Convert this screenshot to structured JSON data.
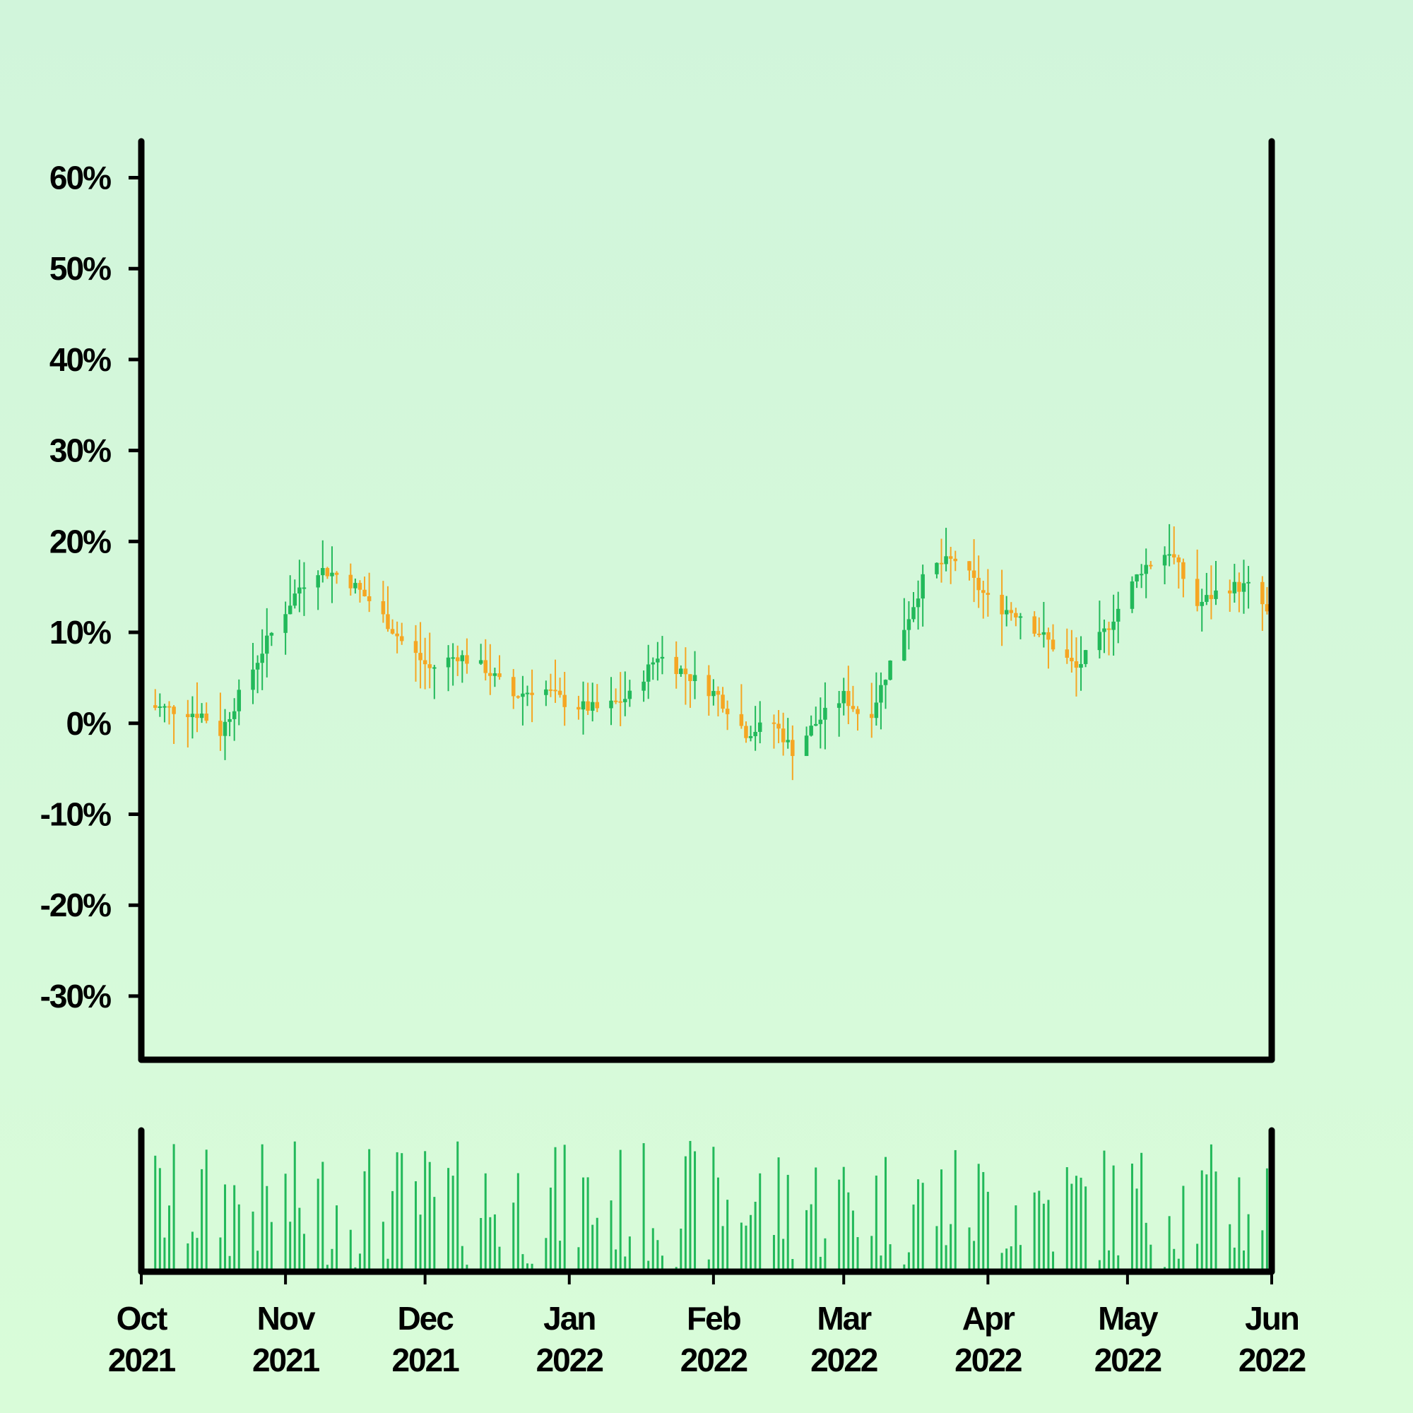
{
  "chart_data": {
    "type": "candlestick",
    "title": "",
    "xlabel": "",
    "ylabel": "",
    "x_range": [
      "2021-10-01",
      "2022-06-01"
    ],
    "ylim": [
      -37,
      64
    ],
    "y_unit": "%",
    "y_ticks": [
      "-30%",
      "-20%",
      "-10%",
      "0%",
      "10%",
      "20%",
      "30%",
      "40%",
      "50%",
      "60%"
    ],
    "y_tick_values": [
      -30,
      -20,
      -10,
      0,
      10,
      20,
      30,
      40,
      50,
      60
    ],
    "x_ticks": [
      {
        "date": "2021-10-01",
        "month": "Oct",
        "year": "2021"
      },
      {
        "date": "2021-11-01",
        "month": "Nov",
        "year": "2021"
      },
      {
        "date": "2021-12-01",
        "month": "Dec",
        "year": "2021"
      },
      {
        "date": "2022-01-01",
        "month": "Jan",
        "year": "2022"
      },
      {
        "date": "2022-02-01",
        "month": "Feb",
        "year": "2022"
      },
      {
        "date": "2022-03-01",
        "month": "Mar",
        "year": "2022"
      },
      {
        "date": "2022-04-01",
        "month": "Apr",
        "year": "2022"
      },
      {
        "date": "2022-05-01",
        "month": "May",
        "year": "2022"
      },
      {
        "date": "2022-06-01",
        "month": "Jun",
        "year": "2022"
      }
    ],
    "colors": {
      "up": "#22b95a",
      "down": "#f5a623",
      "volume": "#22b95a",
      "axis": "#000000"
    },
    "close_path": [
      [
        "2021-10-01",
        2
      ],
      [
        "2021-10-08",
        1.5
      ],
      [
        "2021-10-14",
        1
      ],
      [
        "2021-10-18",
        -1
      ],
      [
        "2021-10-22",
        3
      ],
      [
        "2021-10-28",
        9
      ],
      [
        "2021-11-04",
        15
      ],
      [
        "2021-11-08",
        17
      ],
      [
        "2021-11-14",
        16
      ],
      [
        "2021-11-20",
        13
      ],
      [
        "2021-11-26",
        9
      ],
      [
        "2021-12-02",
        6
      ],
      [
        "2021-12-08",
        7.5
      ],
      [
        "2021-12-14",
        6
      ],
      [
        "2021-12-20",
        3
      ],
      [
        "2021-12-26",
        4
      ],
      [
        "2022-01-01",
        2
      ],
      [
        "2022-01-08",
        1.5
      ],
      [
        "2022-01-14",
        3
      ],
      [
        "2022-01-20",
        7.5
      ],
      [
        "2022-01-26",
        5.5
      ],
      [
        "2022-02-02",
        3
      ],
      [
        "2022-02-08",
        -1
      ],
      [
        "2022-02-14",
        0
      ],
      [
        "2022-02-18",
        -3
      ],
      [
        "2022-02-23",
        0
      ],
      [
        "2022-03-01",
        3
      ],
      [
        "2022-03-06",
        0
      ],
      [
        "2022-03-12",
        8
      ],
      [
        "2022-03-19",
        17
      ],
      [
        "2022-03-25",
        18
      ],
      [
        "2022-04-02",
        13
      ],
      [
        "2022-04-08",
        12
      ],
      [
        "2022-04-14",
        9
      ],
      [
        "2022-04-20",
        6
      ],
      [
        "2022-04-26",
        10
      ],
      [
        "2022-05-04",
        17
      ],
      [
        "2022-05-10",
        19
      ],
      [
        "2022-05-16",
        13
      ],
      [
        "2022-05-22",
        15
      ],
      [
        "2022-05-28",
        15
      ],
      [
        "2022-06-01",
        11
      ]
    ]
  }
}
